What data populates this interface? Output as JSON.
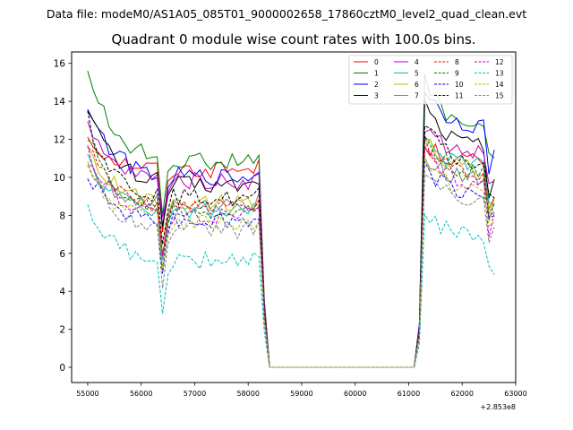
{
  "suptitle": "Data file: modeM0/AS1A05_085T01_9000002658_17860cztM0_level2_quad_clean.evt",
  "chart_data": {
    "type": "line",
    "title": "Quadrant 0 module wise count rates with 100.0s bins.",
    "xlabel": "",
    "ylabel": "",
    "x_offset_label": "+2.853e8",
    "xlim": [
      54700,
      63000
    ],
    "ylim": [
      -0.8,
      16.6
    ],
    "xticks": [
      55000,
      56000,
      57000,
      58000,
      59000,
      60000,
      61000,
      62000,
      63000
    ],
    "yticks": [
      0,
      2,
      4,
      6,
      8,
      10,
      12,
      14,
      16
    ],
    "legend_position": "top-right",
    "legend_columns": 4,
    "grid": false,
    "series": [
      {
        "name": "0",
        "color": "#ff0000",
        "dash": "solid",
        "level": 10.4,
        "after": 10.8,
        "first": 12.2
      },
      {
        "name": "1",
        "color": "#008000",
        "dash": "solid",
        "level": 10.8,
        "after": 12.5,
        "first": 15.8
      },
      {
        "name": "2",
        "color": "#0000ff",
        "dash": "solid",
        "level": 10.0,
        "after": 12.6,
        "first": 13.9
      },
      {
        "name": "3",
        "color": "#000000",
        "dash": "solid",
        "level": 9.6,
        "after": 11.6,
        "first": 13.9
      },
      {
        "name": "4",
        "color": "#bf00bf",
        "dash": "solid",
        "level": 9.8,
        "after": 11.2,
        "first": 12.6
      },
      {
        "name": "5",
        "color": "#00bfbf",
        "dash": "solid",
        "level": 8.2,
        "after": 10.5,
        "first": 11.0
      },
      {
        "name": "6",
        "color": "#bfbf00",
        "dash": "solid",
        "level": 8.7,
        "after": 10.4,
        "first": 11.5
      },
      {
        "name": "7",
        "color": "#808080",
        "dash": "solid",
        "level": 8.6,
        "after": 9.9,
        "first": 10.7
      },
      {
        "name": "8",
        "color": "#ff0000",
        "dash": "dashed",
        "level": 8.4,
        "after": 10.0,
        "first": 11.7
      },
      {
        "name": "9",
        "color": "#008000",
        "dash": "dashed",
        "level": 8.2,
        "after": 10.1,
        "first": 12.2
      },
      {
        "name": "10",
        "color": "#0000ff",
        "dash": "dashed",
        "level": 7.7,
        "after": 9.1,
        "first": 10.3
      },
      {
        "name": "11",
        "color": "#000000",
        "dash": "dashed",
        "level": 8.9,
        "after": 10.6,
        "first": 13.1
      },
      {
        "name": "12",
        "color": "#bf00bf",
        "dash": "dashed",
        "level": 8.0,
        "after": 9.5,
        "first": 11.4
      },
      {
        "name": "13",
        "color": "#00bfbf",
        "dash": "dashed",
        "level": 5.6,
        "after": 6.8,
        "first": 8.4
      },
      {
        "name": "14",
        "color": "#bfbf00",
        "dash": "dashed",
        "level": 7.6,
        "after": 9.2,
        "first": 10.8
      },
      {
        "name": "15",
        "color": "#808080",
        "dash": "dashed",
        "level": 7.2,
        "after": 8.6,
        "first": 10.7
      }
    ]
  }
}
